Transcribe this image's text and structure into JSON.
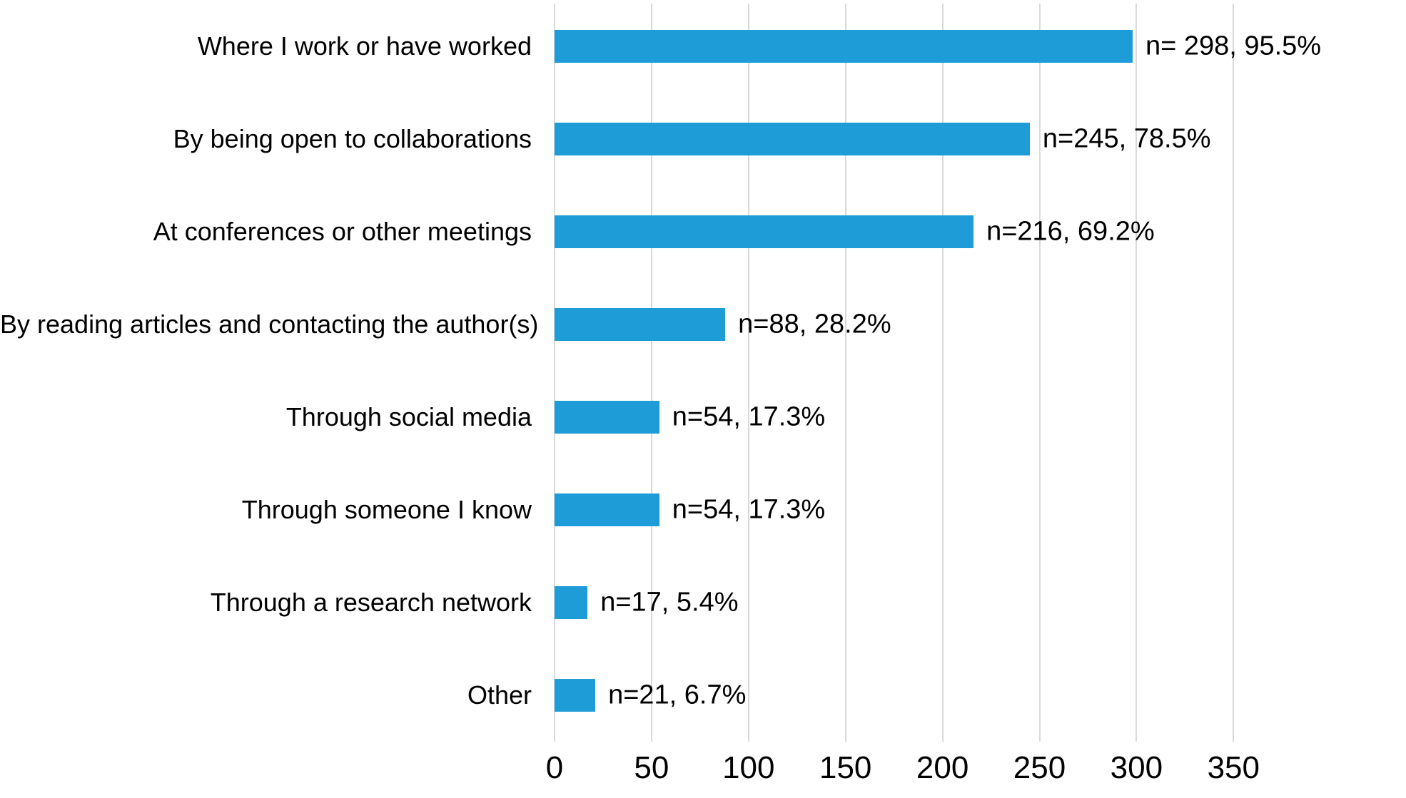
{
  "chart_data": {
    "type": "bar",
    "orientation": "horizontal",
    "title": "",
    "xlabel": "",
    "ylabel": "",
    "categories": [
      "Where I work or have worked",
      "By being open to collaborations",
      "At conferences or other meetings",
      "By reading articles and contacting the author(s)",
      "Through social media",
      "Through someone I know",
      "Through a research network",
      "Other"
    ],
    "values": [
      298,
      245,
      216,
      88,
      54,
      54,
      17,
      21
    ],
    "percents": [
      95.5,
      78.5,
      69.2,
      28.2,
      17.3,
      17.3,
      5.4,
      6.7
    ],
    "data_labels": [
      "n= 298, 95.5%",
      "n=245, 78.5%",
      "n=216, 69.2%",
      "n=88, 28.2%",
      "n=54, 17.3%",
      "n=54, 17.3%",
      "n=17, 5.4%",
      "n=21, 6.7%"
    ],
    "xticks": [
      0,
      50,
      100,
      150,
      200,
      250,
      300,
      350
    ],
    "xlim": [
      0,
      385
    ],
    "grid": "vertical",
    "legend": "none",
    "bar_color": "#1E9CD8",
    "gridline_color": "#D9D9D9",
    "text_color": "#000000",
    "background": "#FFFFFF"
  }
}
